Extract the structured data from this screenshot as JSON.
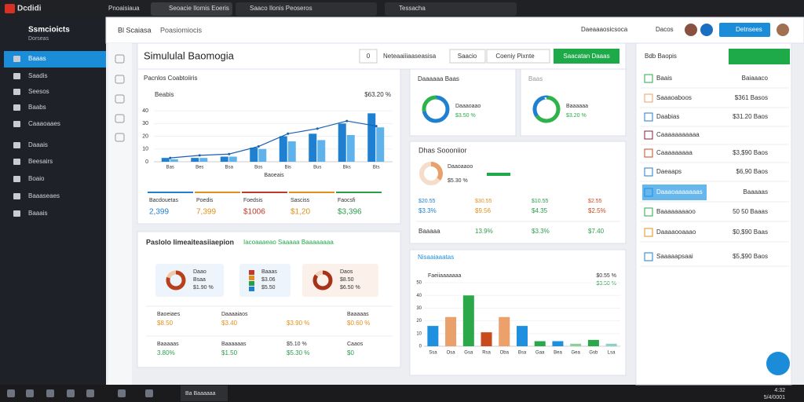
{
  "browser": {
    "tabs": [
      "Dcdidi",
      "Pnoaisiaua",
      "Seoacie Ilomis Eoeris",
      "Saaco Ilonis Peoseros",
      "Tessacha"
    ]
  },
  "app": {
    "title": "Ssmcioicts",
    "subtitle": "Dorseas",
    "breadcrumb": [
      "Bl Scaiasa",
      "Poasiomiocis"
    ],
    "actions": [
      "Daeaaaosicsoca",
      "Dacos",
      "Detnsees"
    ]
  },
  "sidebar": {
    "items": [
      "Baaas",
      "Saadis",
      "Seesos",
      "Baabs",
      "Caaaoaaes",
      "Daaais",
      "Beesairs",
      "Boaio",
      "Baaaseaes",
      "Baaais"
    ]
  },
  "toolbar": {
    "title": "Simululal Baomogia",
    "filter": "0",
    "search": "Neteaaiiiaaseasisa",
    "buttons": [
      "Saacio",
      "Coeniy Pixnte"
    ],
    "primary": "Saacatan Daaas"
  },
  "trend_chart": {
    "type": "bar",
    "title": "Pacnlos Coabtoiiris",
    "legend": "Beabis",
    "total": "$63.20 %",
    "x_label": "Baoeais",
    "categories": [
      "Bas",
      "Bes",
      "Bsa",
      "Bos",
      "Bis",
      "Bus",
      "Bks",
      "Bts"
    ],
    "series": [
      {
        "color": "#1f7fd0",
        "values": [
          3,
          3,
          4,
          11,
          20,
          22,
          30,
          38
        ]
      },
      {
        "color": "#5fb3ea",
        "values": [
          2,
          3,
          4,
          10,
          16,
          17,
          21,
          27
        ]
      }
    ],
    "line": {
      "color": "#1a5fb4",
      "values": [
        3,
        5,
        6,
        12,
        22,
        26,
        32,
        28
      ]
    },
    "ylim": [
      0,
      45
    ],
    "yticks": [
      0,
      10,
      20,
      30,
      40
    ]
  },
  "stats": [
    {
      "label": "Bacdouetas",
      "value": "2,399",
      "color": "#1f7fd0"
    },
    {
      "label": "Poedis",
      "value": "7,399",
      "color": "#e2901c"
    },
    {
      "label": "Foedsis",
      "value": "$1006",
      "color": "#c0392b"
    },
    {
      "label": "Sasciss",
      "value": "$1,20",
      "color": "#e2901c"
    },
    {
      "label": "Faocsfi",
      "value": "$3,396",
      "color": "#2a9d4a"
    }
  ],
  "reports": {
    "title": "Paslolo Iimeaiteasiiaepion",
    "link": "Iacoaaaeao Saaaaa Baaaaaaaa",
    "tiles": [
      {
        "lines": [
          "Daao",
          "Bsaa",
          "$1.90 %"
        ],
        "segments": [
          80,
          20
        ],
        "colors": [
          "#b8411c",
          "#f0c7a8"
        ]
      },
      {
        "lines": [
          "Baaas",
          "$3.06",
          "$5.50"
        ],
        "segments": [
          25,
          25,
          25,
          25
        ],
        "colors": [
          "#c0392b",
          "#e2901c",
          "#2a9d4a",
          "#1f7fd0"
        ]
      },
      {
        "lines": [
          "Daos",
          "$8.50",
          "$6.50 %"
        ],
        "segments": [
          85,
          15
        ],
        "colors": [
          "#a83218",
          "#f3d2c0"
        ]
      }
    ],
    "rows": [
      {
        "color": "#e2901c",
        "cells": [
          {
            "label": "Baoeiaes",
            "value": "$8.50"
          },
          {
            "label": "Daaaaiaos",
            "value": "$3.40"
          },
          {
            "value": "$3.90 %"
          },
          {
            "label": "Baaaaas",
            "value": "$0.60 %"
          }
        ]
      },
      {
        "color": "#2a9d4a",
        "cells": [
          {
            "label": "Baaaaas",
            "value": "3.80%"
          },
          {
            "label": "Baaaaaas",
            "value": "$1.50"
          },
          {
            "label": "$5.10 %",
            "value": "$5.30 %"
          },
          {
            "label": "Caaos",
            "value": "$0"
          }
        ]
      }
    ]
  },
  "cards": [
    {
      "title": "Daaaaaa Baas",
      "label": "Daaaoaao",
      "value": "$3.50 %",
      "segments": [
        72,
        28
      ],
      "colors": [
        "#1f7fd0",
        "#2db34a"
      ]
    },
    {
      "title": "Baas",
      "label": "Baaaaaa",
      "value": "$3.20 %",
      "segments": [
        65,
        35
      ],
      "colors": [
        "#2db34a",
        "#1f7fd0"
      ]
    }
  ],
  "monitor": {
    "title": "Dhas Soooniior",
    "label": "Daaoaaoo",
    "value": "$5.30 %",
    "segments": [
      35,
      65
    ],
    "colors": [
      "#e9a06a",
      "#f5dccb"
    ],
    "labels": [
      "$20.55",
      "$30.55",
      "$10.55",
      "$2.55"
    ],
    "values": [
      "$3.3%",
      "$9.56",
      "$4.35",
      "$2.5%"
    ],
    "footer": [
      "Baaaaa",
      "13.9%",
      "$3.3%",
      "$7.40"
    ]
  },
  "bar_chart": {
    "type": "bar",
    "title": "Nisaaiaaatas",
    "legend": "Faeiiaaaaaaa",
    "notes": [
      "$0.55 %",
      "$3.50 %"
    ],
    "categories": [
      "Ssa",
      "Osa",
      "Gsa",
      "Rsa",
      "Oba",
      "Bsa",
      "Gaa",
      "Bea",
      "Gea",
      "Gsb",
      "Lsa"
    ],
    "values": [
      16,
      23,
      40,
      11,
      23,
      16,
      4,
      4,
      2,
      5,
      2
    ],
    "colors": [
      "#1f8fe0",
      "#e9a06a",
      "#2aa84a",
      "#c94a1c",
      "#eda06a",
      "#1f8fe0",
      "#2aa84a",
      "#1f8fe0",
      "#8fd09a",
      "#2aa84a",
      "#8fd0c8"
    ],
    "ylim": [
      0,
      55
    ],
    "yticks": [
      0,
      10,
      20,
      30,
      40,
      50
    ]
  },
  "side_panel": {
    "title": "Bdb Baopis",
    "rows": [
      {
        "label": "Baais",
        "value": "Baiaaaco",
        "color": "#2aa84a"
      },
      {
        "label": "Saaaoaboos",
        "value": "$361 Basos",
        "color": "#e9a06a"
      },
      {
        "label": "Daabias",
        "value": "$31.20 Baos",
        "color": "#1f7fd0"
      },
      {
        "label": "Caaaaaaaaaaa",
        "color": "#8a2040"
      },
      {
        "label": "Caaaaaaaaa",
        "value": "$3,$90 Baos",
        "color": "#c94a1c"
      },
      {
        "label": "Daeaaps",
        "value": "$6,90 Baos",
        "color": "#1f7fd0"
      },
      {
        "label": "Daaaoaaaaaaas",
        "value": "Baaaaas",
        "color": "#1f8fe0"
      },
      {
        "label": "Baaaaaaaaoo",
        "value": "50 50 Baaas",
        "color": "#2aa84a"
      },
      {
        "label": "Daaaaooaaao",
        "value": "$0,$90 Baas",
        "color": "#e2901c"
      },
      {
        "label": "Saaaaapsaai",
        "value": "$5,$90 Baos",
        "color": "#1f7fd0"
      }
    ]
  },
  "taskbar": {
    "app": "Ba Baaaaaa",
    "time": "4:32",
    "date": "5/4/0001"
  }
}
